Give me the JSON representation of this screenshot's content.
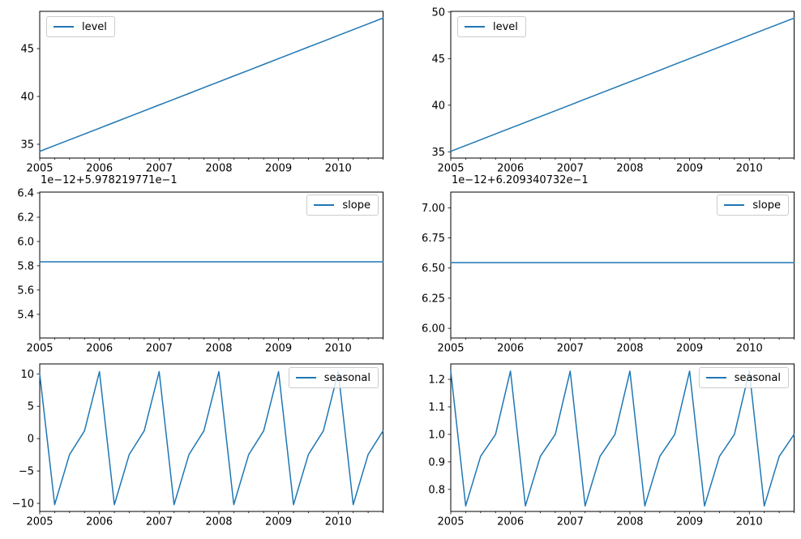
{
  "figure": {
    "background": "#ffffff",
    "line_color": "#1f77b4",
    "axis_color": "#000000",
    "legend_border_color": "#cccccc"
  },
  "chart_data": [
    {
      "type": "line",
      "name": "level-additive",
      "legend_label": "level",
      "legend_loc": "upper-left",
      "grid": false,
      "xlabel": "",
      "ylabel": "",
      "x": [
        2005.0,
        2005.25,
        2005.5,
        2005.75,
        2006.0,
        2006.25,
        2006.5,
        2006.75,
        2007.0,
        2007.25,
        2007.5,
        2007.75,
        2008.0,
        2008.25,
        2008.5,
        2008.75,
        2009.0,
        2009.25,
        2009.5,
        2009.75,
        2010.0,
        2010.25,
        2010.5,
        2010.75
      ],
      "values": [
        34.26,
        34.87,
        35.47,
        36.08,
        36.68,
        37.29,
        37.9,
        38.5,
        39.11,
        39.71,
        40.32,
        40.93,
        41.53,
        42.14,
        42.74,
        43.35,
        43.96,
        44.56,
        45.17,
        45.77,
        46.38,
        46.99,
        47.59,
        48.2
      ],
      "xlim": [
        2005.0,
        2010.75
      ],
      "ylim": [
        33.56,
        48.9
      ],
      "xticks": [
        2005,
        2006,
        2007,
        2008,
        2009,
        2010
      ],
      "xtick_labels": [
        "2005",
        "2006",
        "2007",
        "2008",
        "2009",
        "2010"
      ],
      "minor_xtick_step": 0.25,
      "yticks": [
        35,
        40,
        45
      ],
      "ytick_labels": [
        "35",
        "40",
        "45"
      ]
    },
    {
      "type": "line",
      "name": "level-multiplicative",
      "legend_label": "level",
      "legend_loc": "upper-left",
      "grid": false,
      "xlabel": "",
      "ylabel": "",
      "x": [
        2005.0,
        2005.25,
        2005.5,
        2005.75,
        2006.0,
        2006.25,
        2006.5,
        2006.75,
        2007.0,
        2007.25,
        2007.5,
        2007.75,
        2008.0,
        2008.25,
        2008.5,
        2008.75,
        2009.0,
        2009.25,
        2009.5,
        2009.75,
        2010.0,
        2010.25,
        2010.5,
        2010.75
      ],
      "values": [
        35.05,
        35.67,
        36.29,
        36.92,
        37.54,
        38.16,
        38.78,
        39.4,
        40.02,
        40.65,
        41.27,
        41.89,
        42.51,
        43.13,
        43.75,
        44.38,
        45.0,
        45.62,
        46.24,
        46.86,
        47.49,
        48.11,
        48.73,
        49.35
      ],
      "xlim": [
        2005.0,
        2010.75
      ],
      "ylim": [
        34.33,
        50.07
      ],
      "xticks": [
        2005,
        2006,
        2007,
        2008,
        2009,
        2010
      ],
      "xtick_labels": [
        "2005",
        "2006",
        "2007",
        "2008",
        "2009",
        "2010"
      ],
      "minor_xtick_step": 0.25,
      "yticks": [
        35,
        40,
        45,
        50
      ],
      "ytick_labels": [
        "35",
        "40",
        "45",
        "50"
      ]
    },
    {
      "type": "line",
      "name": "slope-additive",
      "legend_label": "slope",
      "legend_loc": "upper-right",
      "offset_text": "1e−12+5.978219771e−1",
      "grid": false,
      "xlabel": "",
      "ylabel": "",
      "x": [
        2005.0,
        2005.25,
        2005.5,
        2005.75,
        2006.0,
        2006.25,
        2006.5,
        2006.75,
        2007.0,
        2007.25,
        2007.5,
        2007.75,
        2008.0,
        2008.25,
        2008.5,
        2008.75,
        2009.0,
        2009.25,
        2009.5,
        2009.75,
        2010.0,
        2010.25,
        2010.5,
        2010.75
      ],
      "values": [
        5.833,
        5.833,
        5.833,
        5.833,
        5.833,
        5.833,
        5.833,
        5.833,
        5.833,
        5.833,
        5.833,
        5.833,
        5.833,
        5.833,
        5.833,
        5.833,
        5.833,
        5.833,
        5.833,
        5.833,
        5.833,
        5.833,
        5.833,
        5.833
      ],
      "xlim": [
        2005.0,
        2010.75
      ],
      "ylim": [
        5.205,
        6.407
      ],
      "xticks": [
        2005,
        2006,
        2007,
        2008,
        2009,
        2010
      ],
      "xtick_labels": [
        "2005",
        "2006",
        "2007",
        "2008",
        "2009",
        "2010"
      ],
      "minor_xtick_step": 0.25,
      "yticks": [
        5.4,
        5.6,
        5.8,
        6.0,
        6.2,
        6.4
      ],
      "ytick_labels": [
        "5.4",
        "5.6",
        "5.8",
        "6.0",
        "6.2",
        "6.4"
      ]
    },
    {
      "type": "line",
      "name": "slope-multiplicative",
      "legend_label": "slope",
      "legend_loc": "upper-right",
      "offset_text": "1e−12+6.209340732e−1",
      "grid": false,
      "xlabel": "",
      "ylabel": "",
      "x": [
        2005.0,
        2005.25,
        2005.5,
        2005.75,
        2006.0,
        2006.25,
        2006.5,
        2006.75,
        2007.0,
        2007.25,
        2007.5,
        2007.75,
        2008.0,
        2008.25,
        2008.5,
        2008.75,
        2009.0,
        2009.25,
        2009.5,
        2009.75,
        2010.0,
        2010.25,
        2010.5,
        2010.75
      ],
      "values": [
        6.545,
        6.545,
        6.545,
        6.545,
        6.545,
        6.545,
        6.545,
        6.545,
        6.545,
        6.545,
        6.545,
        6.545,
        6.545,
        6.545,
        6.545,
        6.545,
        6.545,
        6.545,
        6.545,
        6.545,
        6.545,
        6.545,
        6.545,
        6.545
      ],
      "xlim": [
        2005.0,
        2010.75
      ],
      "ylim": [
        5.92,
        7.13
      ],
      "xticks": [
        2005,
        2006,
        2007,
        2008,
        2009,
        2010
      ],
      "xtick_labels": [
        "2005",
        "2006",
        "2007",
        "2008",
        "2009",
        "2010"
      ],
      "minor_xtick_step": 0.25,
      "yticks": [
        6.0,
        6.25,
        6.5,
        6.75,
        7.0
      ],
      "ytick_labels": [
        "6.00",
        "6.25",
        "6.50",
        "6.75",
        "7.00"
      ]
    },
    {
      "type": "line",
      "name": "seasonal-additive",
      "legend_label": "seasonal",
      "legend_loc": "upper-right",
      "grid": false,
      "xlabel": "",
      "ylabel": "",
      "x": [
        2005.0,
        2005.25,
        2005.5,
        2005.75,
        2006.0,
        2006.25,
        2006.5,
        2006.75,
        2007.0,
        2007.25,
        2007.5,
        2007.75,
        2008.0,
        2008.25,
        2008.5,
        2008.75,
        2009.0,
        2009.25,
        2009.5,
        2009.75,
        2010.0,
        2010.25,
        2010.5,
        2010.75
      ],
      "values": [
        10.0,
        -10.2,
        -2.45,
        1.2,
        10.35,
        -10.2,
        -2.45,
        1.2,
        10.35,
        -10.2,
        -2.45,
        1.2,
        10.35,
        -10.2,
        -2.45,
        1.2,
        10.35,
        -10.2,
        -2.45,
        1.2,
        10.35,
        -10.2,
        -2.45,
        1.2
      ],
      "xlim": [
        2005.0,
        2010.75
      ],
      "ylim": [
        -11.25,
        11.54
      ],
      "xticks": [
        2005,
        2006,
        2007,
        2008,
        2009,
        2010
      ],
      "xtick_labels": [
        "2005",
        "2006",
        "2007",
        "2008",
        "2009",
        "2010"
      ],
      "minor_xtick_step": 0.25,
      "yticks": [
        -10,
        -5,
        0,
        5,
        10
      ],
      "ytick_labels": [
        "−10",
        "−5",
        "0",
        "5",
        "10"
      ]
    },
    {
      "type": "line",
      "name": "seasonal-multiplicative",
      "legend_label": "seasonal",
      "legend_loc": "upper-right",
      "grid": false,
      "xlabel": "",
      "ylabel": "",
      "x": [
        2005.0,
        2005.25,
        2005.5,
        2005.75,
        2006.0,
        2006.25,
        2006.5,
        2006.75,
        2007.0,
        2007.25,
        2007.5,
        2007.75,
        2008.0,
        2008.25,
        2008.5,
        2008.75,
        2009.0,
        2009.25,
        2009.5,
        2009.75,
        2010.0,
        2010.25,
        2010.5,
        2010.75
      ],
      "values": [
        1.23,
        0.74,
        0.92,
        1.0,
        1.23,
        0.74,
        0.92,
        1.0,
        1.23,
        0.74,
        0.92,
        1.0,
        1.23,
        0.74,
        0.92,
        1.0,
        1.23,
        0.74,
        0.92,
        1.0,
        1.23,
        0.74,
        0.92,
        1.0
      ],
      "xlim": [
        2005.0,
        2010.75
      ],
      "ylim": [
        0.72,
        1.256
      ],
      "xticks": [
        2005,
        2006,
        2007,
        2008,
        2009,
        2010
      ],
      "xtick_labels": [
        "2005",
        "2006",
        "2007",
        "2008",
        "2009",
        "2010"
      ],
      "minor_xtick_step": 0.25,
      "yticks": [
        0.8,
        0.9,
        1.0,
        1.1,
        1.2
      ],
      "ytick_labels": [
        "0.8",
        "0.9",
        "1.0",
        "1.1",
        "1.2"
      ]
    }
  ]
}
